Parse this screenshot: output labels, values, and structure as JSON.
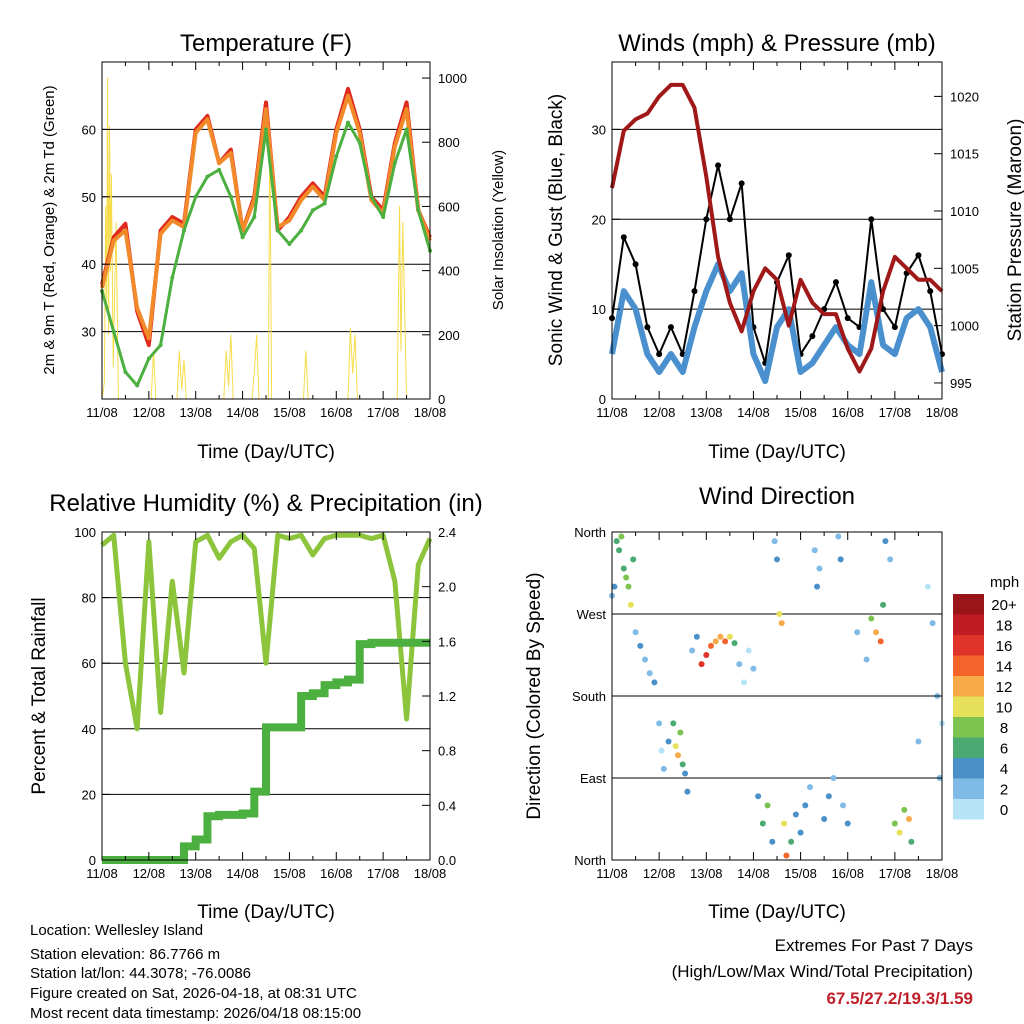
{
  "info": {
    "location": "Location: Wellesley Island",
    "elevation": "Station elevation: 86.7766 m",
    "latlon": "Station lat/lon: 44.3078; -76.0086",
    "created": "Figure created on Sat, 2026-04-18, at 08:31 UTC",
    "timestamp": "Most recent data timestamp: 2026/04/18 08:15:00"
  },
  "extremes": {
    "title": "Extremes For Past 7 Days",
    "subtitle": "(High/Low/Max Wind/Total Precipitation)",
    "values": "67.5/27.2/19.3/1.59"
  },
  "chart_data": [
    {
      "type": "line",
      "title": "Temperature (F)",
      "xlabel": "Time (Day/UTC)",
      "ylabel": "2m & 9m T (Red, Orange) & 2m Td (Green)",
      "ylabel_right": "Solar Insolation (Yellow)",
      "x_ticks": [
        "11/08",
        "12/08",
        "13/08",
        "14/08",
        "15/08",
        "16/08",
        "17/08",
        "18/08"
      ],
      "y_ticks": [
        30,
        40,
        50,
        60
      ],
      "y_ticks_right": [
        0,
        200,
        400,
        600,
        800,
        1000
      ],
      "ylim": [
        20,
        70
      ],
      "ylim_right": [
        0,
        1050
      ],
      "x_days": [
        0,
        0.25,
        0.5,
        0.75,
        1,
        1.25,
        1.5,
        1.75,
        2,
        2.25,
        2.5,
        2.75,
        3,
        3.25,
        3.5,
        3.75,
        4,
        4.25,
        4.5,
        4.75,
        5,
        5.25,
        5.5,
        5.75,
        6,
        6.25,
        6.5,
        6.75,
        7
      ],
      "series": [
        {
          "name": "2m T",
          "color": "#e02a1e",
          "values": [
            37,
            44,
            46,
            33,
            28,
            45,
            47,
            46,
            60,
            62,
            55,
            57,
            45,
            50,
            64,
            45,
            47,
            50,
            52,
            50,
            60,
            66,
            60,
            50,
            48,
            58,
            64,
            48,
            44
          ]
        },
        {
          "name": "9m T",
          "color": "#f28a2a",
          "values": [
            36.5,
            43.5,
            45,
            33.5,
            29,
            44.5,
            46.5,
            45.5,
            59.5,
            61.5,
            55,
            56.5,
            45,
            49.5,
            63,
            45.5,
            46.5,
            49.5,
            51.5,
            49.5,
            59.5,
            65,
            59.5,
            49.5,
            47.5,
            57.5,
            63,
            48,
            43.5
          ]
        },
        {
          "name": "2m Td",
          "color": "#4cb040",
          "values": [
            36,
            30,
            24,
            22,
            26,
            28,
            38,
            45,
            50,
            53,
            54,
            50,
            44,
            47,
            60,
            45,
            43,
            45,
            48,
            49,
            56,
            61,
            58,
            50,
            47,
            55,
            60,
            48,
            42
          ]
        }
      ],
      "solar": {
        "name": "Solar Insolation",
        "color": "#f7dc4a",
        "points": [
          [
            0,
            0
          ],
          [
            0.05,
            50
          ],
          [
            0.08,
            600
          ],
          [
            0.1,
            300
          ],
          [
            0.12,
            1000
          ],
          [
            0.14,
            200
          ],
          [
            0.16,
            850
          ],
          [
            0.18,
            400
          ],
          [
            0.2,
            700
          ],
          [
            0.24,
            100
          ],
          [
            0.3,
            550
          ],
          [
            0.35,
            0
          ],
          [
            1.05,
            0
          ],
          [
            1.1,
            150
          ],
          [
            1.15,
            0
          ],
          [
            1.6,
            0
          ],
          [
            1.65,
            150
          ],
          [
            1.7,
            30
          ],
          [
            1.75,
            120
          ],
          [
            1.8,
            0
          ],
          [
            2.6,
            0
          ],
          [
            2.65,
            150
          ],
          [
            2.7,
            40
          ],
          [
            2.75,
            200
          ],
          [
            2.8,
            0
          ],
          [
            3.2,
            0
          ],
          [
            3.25,
            80
          ],
          [
            3.3,
            200
          ],
          [
            3.35,
            0
          ],
          [
            3.55,
            0
          ],
          [
            3.58,
            850
          ],
          [
            3.62,
            0
          ],
          [
            4.3,
            0
          ],
          [
            4.35,
            150
          ],
          [
            4.4,
            0
          ],
          [
            5.25,
            0
          ],
          [
            5.3,
            220
          ],
          [
            5.35,
            80
          ],
          [
            5.4,
            200
          ],
          [
            5.45,
            0
          ],
          [
            6.3,
            0
          ],
          [
            6.35,
            600
          ],
          [
            6.38,
            150
          ],
          [
            6.42,
            550
          ],
          [
            6.5,
            0
          ],
          [
            7,
            0
          ]
        ]
      }
    },
    {
      "type": "line",
      "title": "Winds (mph) & Pressure (mb)",
      "xlabel": "Time (Day/UTC)",
      "ylabel": "Sonic Wind & Gust (Blue, Black)",
      "ylabel_right": "Station Pressure (Maroon)",
      "x_ticks": [
        "11/08",
        "12/08",
        "13/08",
        "14/08",
        "15/08",
        "16/08",
        "17/08",
        "18/08"
      ],
      "y_ticks": [
        0,
        10,
        20,
        30
      ],
      "y_ticks_right": [
        995,
        1000,
        1005,
        1010,
        1015,
        1020
      ],
      "ylim": [
        0,
        37.5
      ],
      "ylim_right": [
        993.6,
        1023
      ],
      "x_days": [
        0,
        0.25,
        0.5,
        0.75,
        1,
        1.25,
        1.5,
        1.75,
        2,
        2.25,
        2.5,
        2.75,
        3,
        3.25,
        3.5,
        3.75,
        4,
        4.25,
        4.5,
        4.75,
        5,
        5.25,
        5.5,
        5.75,
        6,
        6.25,
        6.5,
        6.75,
        7
      ],
      "series": [
        {
          "name": "Gust",
          "color": "#000000",
          "values": [
            9,
            18,
            15,
            8,
            5,
            8,
            5,
            12,
            20,
            26,
            20,
            24,
            8,
            4,
            13,
            16,
            5,
            7,
            10,
            13,
            9,
            8,
            20,
            10,
            8,
            14,
            16,
            12,
            5
          ]
        },
        {
          "name": "Wind",
          "color": "#4a90cf",
          "values": [
            5,
            12,
            10,
            5,
            3,
            5,
            3,
            8,
            12,
            15,
            12,
            14,
            5,
            2,
            8,
            10,
            3,
            4,
            6,
            8,
            6,
            5,
            13,
            6,
            5,
            9,
            10,
            8,
            3
          ]
        },
        {
          "name": "Pressure",
          "color": "#a01818",
          "axis": "right",
          "values": [
            1012,
            1017,
            1018,
            1018.5,
            1020,
            1021,
            1021,
            1019,
            1013,
            1006,
            1002,
            999.5,
            1003,
            1005,
            1004,
            1000,
            1004,
            1002,
            1001,
            1001,
            998,
            996,
            998,
            1003,
            1006,
            1005,
            1004,
            1004,
            1003
          ]
        }
      ]
    },
    {
      "type": "line",
      "title": "Relative Humidity (%) & Precipitation (in)",
      "xlabel": "Time (Day/UTC)",
      "ylabel": "Percent & Total Rainfall",
      "x_ticks": [
        "11/08",
        "12/08",
        "13/08",
        "14/08",
        "15/08",
        "16/08",
        "17/08",
        "18/08"
      ],
      "y_ticks": [
        0,
        20,
        40,
        60,
        80,
        100
      ],
      "y_ticks_right": [
        "0.0",
        "0.4",
        "0.8",
        "1.2",
        "1.6",
        "2.0",
        "2.4"
      ],
      "ylim": [
        0,
        100
      ],
      "ylim_right": [
        0,
        2.4
      ],
      "x_days": [
        0,
        0.25,
        0.5,
        0.75,
        1,
        1.25,
        1.5,
        1.75,
        2,
        2.25,
        2.5,
        2.75,
        3,
        3.25,
        3.5,
        3.75,
        4,
        4.25,
        4.5,
        4.75,
        5,
        5.25,
        5.5,
        5.75,
        6,
        6.25,
        6.5,
        6.75,
        7
      ],
      "series": [
        {
          "name": "Relative Humidity",
          "color": "#8cc43c",
          "values": [
            96,
            99,
            60,
            40,
            97,
            45,
            85,
            57,
            97,
            99,
            92,
            97,
            99,
            95,
            60,
            99,
            98,
            99,
            93,
            98,
            99,
            99,
            99,
            98,
            99,
            85,
            43,
            90,
            98
          ]
        },
        {
          "name": "Total Precipitation",
          "color": "#4cb040",
          "axis": "right",
          "values": [
            0,
            0,
            0,
            0,
            0,
            0,
            0,
            0.1,
            0.15,
            0.32,
            0.33,
            0.33,
            0.34,
            0.5,
            0.97,
            0.97,
            0.97,
            1.2,
            1.22,
            1.28,
            1.3,
            1.32,
            1.58,
            1.59,
            1.59,
            1.59,
            1.59,
            1.59,
            1.59
          ]
        }
      ]
    },
    {
      "type": "scatter",
      "title": "Wind Direction",
      "xlabel": "Time (Day/UTC)",
      "ylabel": "Direction (Colored By Speed)",
      "x_ticks": [
        "11/08",
        "12/08",
        "13/08",
        "14/08",
        "15/08",
        "16/08",
        "17/08",
        "18/08"
      ],
      "y_ticks": [
        {
          "deg": 0,
          "label": "North"
        },
        {
          "deg": 90,
          "label": "East"
        },
        {
          "deg": 180,
          "label": "South"
        },
        {
          "deg": 270,
          "label": "West"
        },
        {
          "deg": 360,
          "label": "North"
        }
      ],
      "ylim": [
        0,
        360
      ],
      "legend": {
        "title": "mph",
        "placement": "right",
        "bins": [
          {
            "label": "20+",
            "min": 20,
            "color": "#9a1519"
          },
          {
            "label": "18",
            "min": 18,
            "color": "#c01c24"
          },
          {
            "label": "16",
            "min": 16,
            "color": "#e0332a"
          },
          {
            "label": "14",
            "min": 14,
            "color": "#f2642a"
          },
          {
            "label": "12",
            "min": 12,
            "color": "#f8aa48"
          },
          {
            "label": "10",
            "min": 10,
            "color": "#e6e05a"
          },
          {
            "label": "8",
            "min": 8,
            "color": "#7cc350"
          },
          {
            "label": "6",
            "min": 6,
            "color": "#4aaa72"
          },
          {
            "label": "4",
            "min": 4,
            "color": "#4a90c9"
          },
          {
            "label": "2",
            "min": 2,
            "color": "#7fbbe6"
          },
          {
            "label": "0",
            "min": 0,
            "color": "#b7e3f7"
          }
        ]
      },
      "points": [
        [
          0.0,
          290,
          3
        ],
        [
          0.05,
          300,
          4
        ],
        [
          0.1,
          350,
          7
        ],
        [
          0.15,
          340,
          6
        ],
        [
          0.2,
          355,
          8
        ],
        [
          0.25,
          320,
          7
        ],
        [
          0.3,
          310,
          9
        ],
        [
          0.35,
          300,
          8
        ],
        [
          0.4,
          280,
          10
        ],
        [
          0.45,
          330,
          6
        ],
        [
          0.5,
          250,
          2
        ],
        [
          0.6,
          235,
          4
        ],
        [
          0.7,
          220,
          3
        ],
        [
          0.8,
          205,
          2
        ],
        [
          0.9,
          195,
          4
        ],
        [
          1.0,
          150,
          2
        ],
        [
          1.05,
          120,
          1
        ],
        [
          1.1,
          100,
          2
        ],
        [
          1.2,
          130,
          4
        ],
        [
          1.3,
          150,
          6
        ],
        [
          1.35,
          125,
          10
        ],
        [
          1.4,
          115,
          12
        ],
        [
          1.45,
          140,
          8
        ],
        [
          1.5,
          105,
          6
        ],
        [
          1.55,
          95,
          5
        ],
        [
          1.6,
          75,
          4
        ],
        [
          1.7,
          230,
          3
        ],
        [
          1.8,
          245,
          4
        ],
        [
          1.9,
          215,
          16
        ],
        [
          2.0,
          225,
          17
        ],
        [
          2.1,
          235,
          14
        ],
        [
          2.2,
          240,
          13
        ],
        [
          2.3,
          245,
          12
        ],
        [
          2.4,
          240,
          15
        ],
        [
          2.5,
          245,
          11
        ],
        [
          2.6,
          238,
          6
        ],
        [
          2.7,
          215,
          2
        ],
        [
          2.8,
          195,
          1
        ],
        [
          2.9,
          230,
          1
        ],
        [
          3.0,
          210,
          3
        ],
        [
          3.1,
          70,
          4
        ],
        [
          3.2,
          40,
          6
        ],
        [
          3.3,
          60,
          8
        ],
        [
          3.4,
          20,
          4
        ],
        [
          3.45,
          350,
          3
        ],
        [
          3.5,
          330,
          4
        ],
        [
          3.55,
          270,
          10
        ],
        [
          3.6,
          260,
          12
        ],
        [
          3.65,
          40,
          10
        ],
        [
          3.7,
          5,
          14
        ],
        [
          3.8,
          20,
          6
        ],
        [
          3.9,
          50,
          4
        ],
        [
          4.0,
          30,
          5
        ],
        [
          4.1,
          60,
          4
        ],
        [
          4.2,
          80,
          3
        ],
        [
          4.3,
          340,
          3
        ],
        [
          4.35,
          300,
          4
        ],
        [
          4.4,
          320,
          3
        ],
        [
          4.5,
          45,
          5
        ],
        [
          4.6,
          70,
          4
        ],
        [
          4.7,
          90,
          2
        ],
        [
          4.8,
          355,
          3
        ],
        [
          4.85,
          330,
          4
        ],
        [
          4.9,
          60,
          3
        ],
        [
          5.0,
          40,
          4
        ],
        [
          5.2,
          250,
          2
        ],
        [
          5.4,
          220,
          3
        ],
        [
          5.5,
          265,
          8
        ],
        [
          5.6,
          250,
          12
        ],
        [
          5.7,
          240,
          14
        ],
        [
          5.75,
          280,
          6
        ],
        [
          5.8,
          350,
          4
        ],
        [
          5.9,
          330,
          3
        ],
        [
          6.0,
          40,
          8
        ],
        [
          6.1,
          30,
          10
        ],
        [
          6.2,
          55,
          9
        ],
        [
          6.3,
          45,
          12
        ],
        [
          6.35,
          20,
          6
        ],
        [
          6.5,
          130,
          2
        ],
        [
          6.7,
          300,
          1
        ],
        [
          6.8,
          260,
          2
        ],
        [
          6.9,
          180,
          3
        ],
        [
          6.95,
          90,
          2
        ],
        [
          7.0,
          150,
          1
        ]
      ]
    }
  ]
}
